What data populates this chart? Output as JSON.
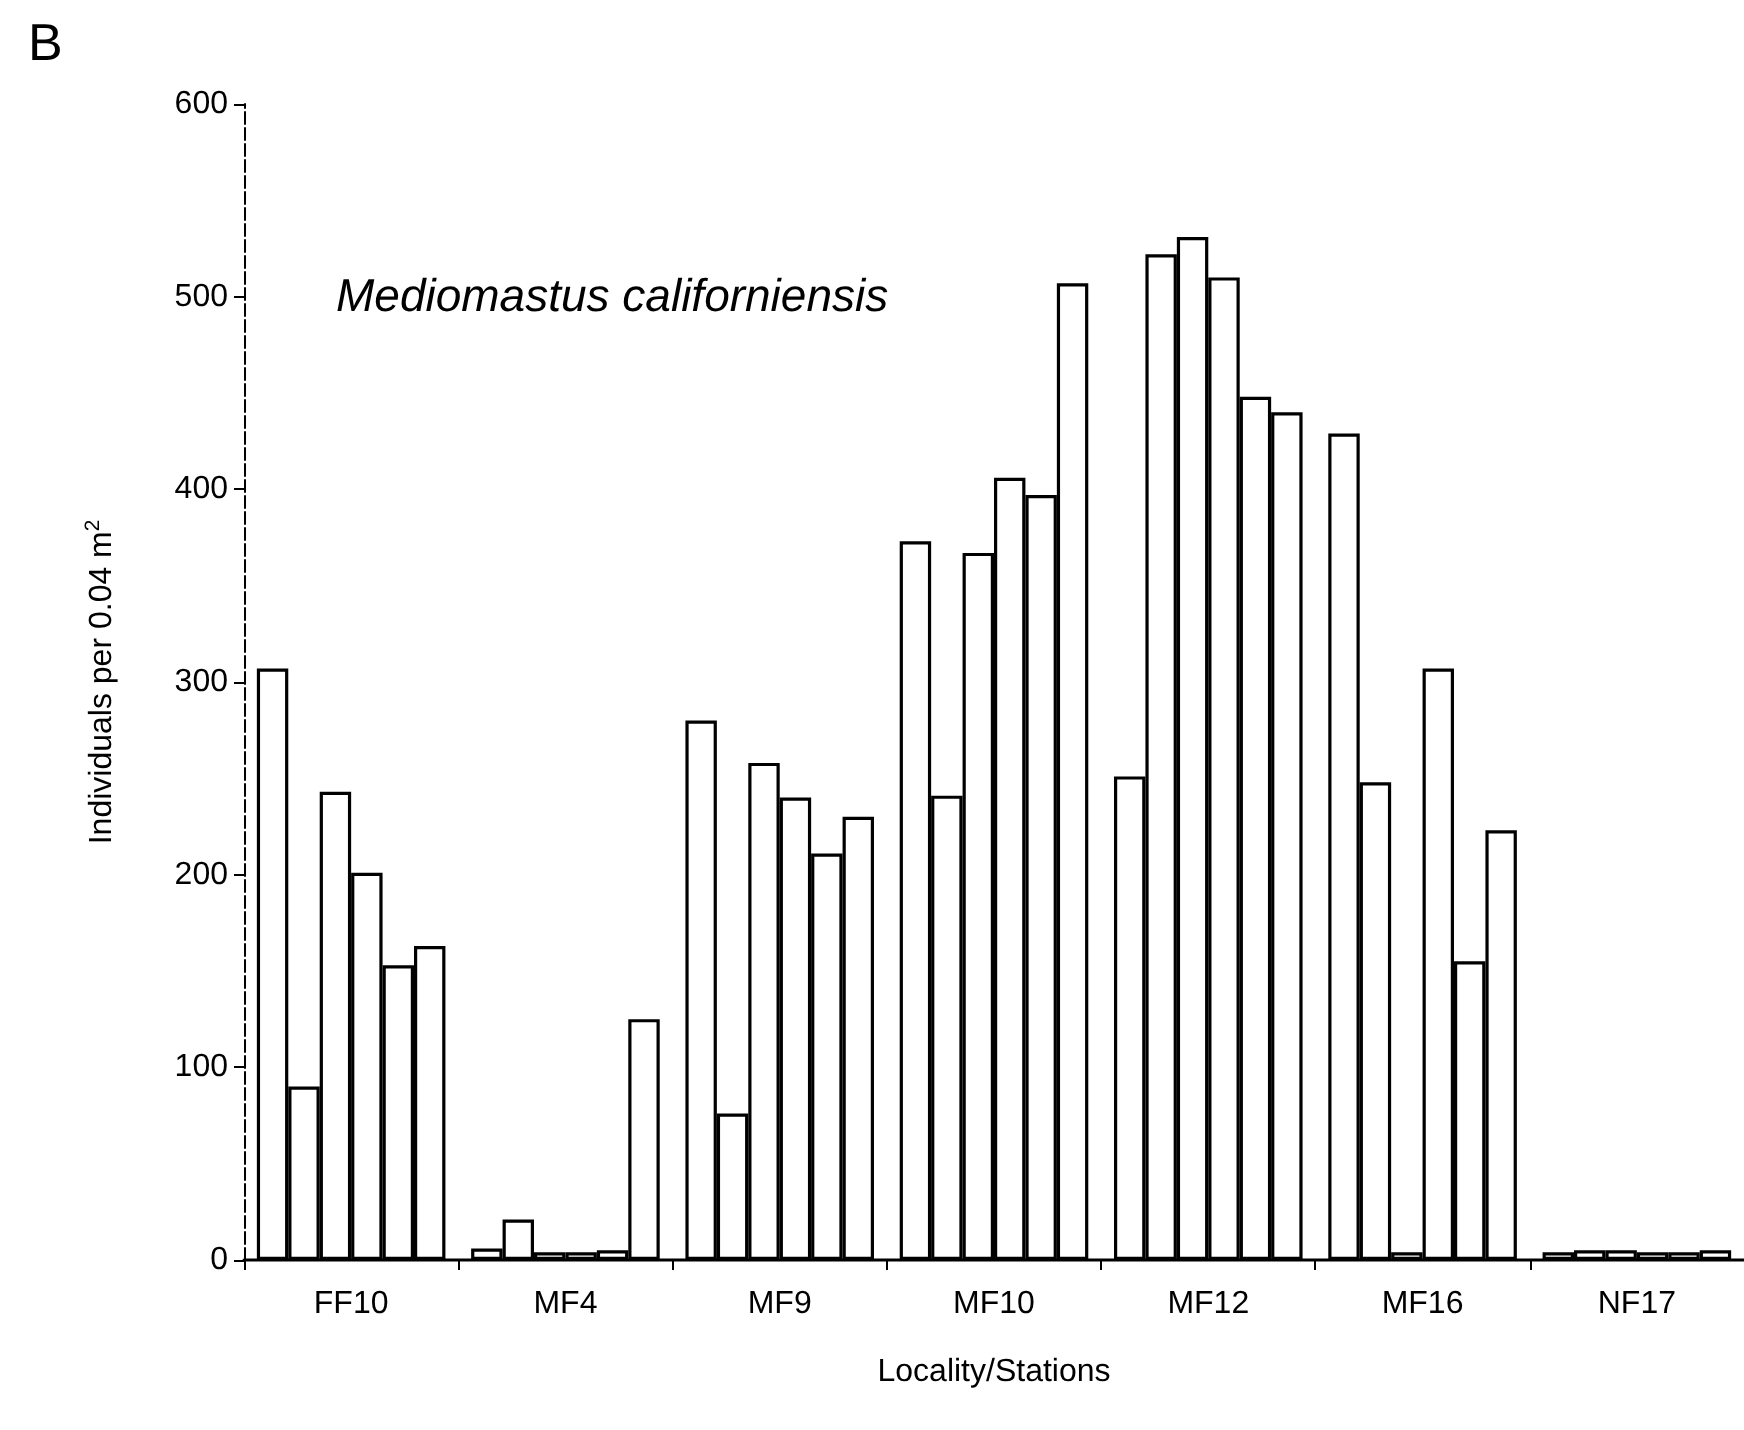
{
  "chart_data": {
    "type": "bar",
    "title": "B",
    "xlabel": "Locality/Stations",
    "ylabel": "Individuals per 0.04 m$^{2}$",
    "annotations": [
      "Mediomastus californiensis"
    ],
    "categories": [
      "FF10",
      "MF4",
      "MF9",
      "MF10",
      "MF12",
      "MF16",
      "NF17"
    ],
    "series": [
      {
        "color": "#ffffff",
        "values": [
          307,
          6,
          280,
          373,
          251,
          429,
          4
        ]
      },
      {
        "color": "#ffffff",
        "values": [
          90,
          21,
          76,
          241,
          522,
          248,
          5
        ]
      },
      {
        "color": "#ffffff",
        "values": [
          243,
          4,
          258,
          367,
          531,
          4,
          5
        ]
      },
      {
        "color": "#ffffff",
        "values": [
          201,
          4,
          240,
          406,
          510,
          307,
          4
        ]
      },
      {
        "color": "#ffffff",
        "values": [
          153,
          5,
          211,
          397,
          448,
          155,
          4
        ]
      },
      {
        "color": "#ffffff",
        "values": [
          163,
          125,
          230,
          507,
          440,
          223,
          5
        ]
      }
    ],
    "ylim": [
      0,
      600
    ],
    "yticks": [
      0,
      100,
      200,
      300,
      400,
      500,
      600
    ],
    "grid": false
  }
}
